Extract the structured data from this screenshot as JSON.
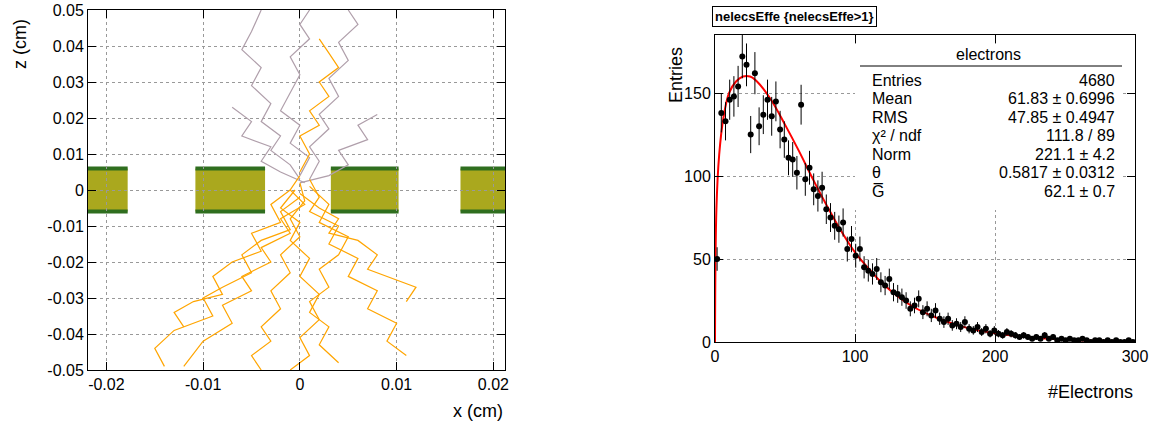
{
  "chart_data": [
    {
      "type": "line",
      "xlabel": "x (cm)",
      "ylabel": "z (cm)",
      "xlim": [
        -0.0219,
        0.0212
      ],
      "ylim": [
        -0.05,
        0.05
      ],
      "xticks": [
        -0.02,
        -0.01,
        0,
        0.01,
        0.02
      ],
      "yticks": [
        -0.05,
        -0.04,
        -0.03,
        -0.02,
        -0.01,
        0,
        0.01,
        0.02,
        0.03,
        0.04,
        0.05
      ],
      "grid": true,
      "foil": {
        "z": [
          -0.006,
          0.006
        ],
        "color": "#aaa81e",
        "edge_color": "#2f6e1f",
        "segments": [
          [
            -0.0219,
            -0.0178
          ],
          [
            -0.0108,
            -0.0036
          ],
          [
            0.0032,
            0.0102
          ],
          [
            0.0166,
            0.0212
          ]
        ]
      },
      "series": [
        {
          "color": "#b09fab",
          "x": [
            0,
            -0.001,
            -0.003,
            -0.002,
            -0.004,
            -0.003,
            -0.005,
            -0.004,
            -0.006,
            -0.005,
            -0.004
          ],
          "y": [
            0.003,
            0.007,
            0.011,
            0.015,
            0.019,
            0.024,
            0.029,
            0.034,
            0.039,
            0.044,
            0.05
          ]
        },
        {
          "color": "#b09fab",
          "x": [
            0.001,
            0.002,
            0.001,
            0.003,
            0.002,
            0.004,
            0.003,
            0.005,
            0.004,
            0.006,
            0.005
          ],
          "y": [
            0.003,
            0.008,
            0.012,
            0.017,
            0.021,
            0.026,
            0.031,
            0.036,
            0.041,
            0.046,
            0.05
          ]
        },
        {
          "color": "#b09fab",
          "x": [
            0,
            0.001,
            -0.001,
            0,
            -0.002,
            -0.001,
            0,
            -0.001,
            0.001,
            0,
            0.001
          ],
          "y": [
            0.004,
            0.009,
            0.013,
            0.018,
            0.022,
            0.027,
            0.032,
            0.037,
            0.042,
            0.046,
            0.05
          ]
        },
        {
          "color": "#b09fab",
          "x": [
            0.0005,
            -0.002,
            -0.004,
            -0.003,
            -0.006,
            -0.005,
            -0.007
          ],
          "y": [
            0.002,
            0.005,
            0.008,
            0.012,
            0.015,
            0.019,
            0.023
          ]
        },
        {
          "color": "#b09fab",
          "x": [
            0,
            0.003,
            0.005,
            0.004,
            0.007,
            0.006,
            0.008
          ],
          "y": [
            0.002,
            0.004,
            0.007,
            0.011,
            0.014,
            0.018,
            0.021
          ]
        },
        {
          "color": "#ffa500",
          "x": [
            0,
            -0.001,
            0.0005,
            -0.002,
            -0.001,
            -0.004,
            -0.003,
            -0.006,
            -0.005,
            -0.008,
            -0.007,
            -0.01,
            -0.012
          ],
          "y": [
            0.004,
            0,
            -0.004,
            -0.008,
            -0.012,
            -0.016,
            -0.02,
            -0.024,
            -0.028,
            -0.032,
            -0.037,
            -0.042,
            -0.049
          ]
        },
        {
          "color": "#ffa500",
          "x": [
            0.001,
            0.002,
            0.001,
            0.004,
            0.003,
            0.006,
            0.005,
            0.008,
            0.007,
            0.01,
            0.009,
            0.011
          ],
          "y": [
            0.003,
            -0.002,
            -0.006,
            -0.01,
            -0.015,
            -0.019,
            -0.024,
            -0.028,
            -0.033,
            -0.037,
            -0.042,
            -0.046
          ]
        },
        {
          "color": "#ffa500",
          "x": [
            0,
            0.0005,
            -0.001,
            0,
            -0.002,
            -0.001,
            -0.003,
            -0.002,
            -0.004,
            -0.003,
            -0.005,
            -0.004
          ],
          "y": [
            0.002,
            -0.003,
            -0.008,
            -0.013,
            -0.018,
            -0.023,
            -0.028,
            -0.033,
            -0.038,
            -0.042,
            -0.046,
            -0.05
          ]
        },
        {
          "color": "#ffa500",
          "x": [
            -0.001,
            -0.003,
            -0.002,
            -0.005,
            -0.004,
            -0.007,
            -0.009,
            -0.008,
            -0.011,
            -0.013,
            -0.012
          ],
          "y": [
            0,
            -0.004,
            -0.009,
            -0.012,
            -0.017,
            -0.02,
            -0.024,
            -0.029,
            -0.031,
            -0.034,
            -0.038
          ]
        },
        {
          "color": "#ffa500",
          "x": [
            0.001,
            0.003,
            0.002,
            0.005,
            0.004,
            0.002,
            0.003,
            0.001,
            0.002,
            0,
            0.001,
            -0.001
          ],
          "y": [
            0.001,
            -0.004,
            -0.009,
            -0.013,
            -0.018,
            -0.022,
            -0.027,
            -0.031,
            -0.036,
            -0.041,
            -0.046,
            -0.05
          ]
        },
        {
          "color": "#ffa500",
          "x": [
            0,
            0.002,
            0.004,
            0.003,
            0.006,
            0.008,
            0.007,
            0.01,
            0.012,
            0.011
          ],
          "y": [
            -0.001,
            -0.005,
            -0.008,
            -0.012,
            -0.014,
            -0.018,
            -0.022,
            -0.025,
            -0.027,
            -0.031
          ]
        },
        {
          "color": "#ffa500",
          "x": [
            -0.0005,
            -0.002,
            0,
            -0.001,
            0.001,
            0,
            0.002,
            0.001,
            0.003,
            0.002,
            0.004
          ],
          "y": [
            0,
            -0.005,
            -0.009,
            -0.014,
            -0.019,
            -0.024,
            -0.029,
            -0.034,
            -0.038,
            -0.043,
            -0.048
          ]
        },
        {
          "color": "#ffa500",
          "x": [
            0,
            -0.002,
            -0.001,
            -0.004,
            -0.006,
            -0.005,
            -0.008,
            -0.01,
            -0.009,
            -0.013,
            -0.015,
            -0.014
          ],
          "y": [
            -0.002,
            -0.006,
            -0.011,
            -0.014,
            -0.018,
            -0.023,
            -0.027,
            -0.03,
            -0.035,
            -0.039,
            -0.044,
            -0.049
          ]
        },
        {
          "color": "#ffa500",
          "x": [
            0,
            0.001,
            0,
            0.002,
            0.001,
            0.003,
            0.002,
            0.004,
            0.003,
            0.002
          ],
          "y": [
            0.005,
            0.01,
            0.015,
            0.018,
            0.022,
            0.026,
            0.03,
            0.034,
            0.038,
            0.042
          ]
        }
      ]
    },
    {
      "type": "histogram",
      "title": "nelecsEffe {nelecsEffe>1}",
      "xlabel": "#Electrons",
      "ylabel": "Entries",
      "xlim": [
        0,
        300
      ],
      "ylim": [
        0,
        185
      ],
      "xticks": [
        0,
        100,
        200,
        300
      ],
      "yticks": [
        0,
        50,
        100,
        150
      ],
      "grid": true,
      "marker": "circle",
      "color": "#000000",
      "bins": [
        0,
        3,
        6,
        9,
        12,
        15,
        18,
        21,
        24,
        27,
        30,
        33,
        36,
        39,
        42,
        45,
        48,
        51,
        54,
        57,
        60,
        63,
        66,
        69,
        72,
        75,
        78,
        81,
        84,
        87,
        90,
        93,
        96,
        99,
        102,
        105,
        108,
        111,
        114,
        117,
        120,
        123,
        126,
        129,
        132,
        135,
        138,
        141,
        144,
        147,
        150,
        153,
        156,
        159,
        162,
        165,
        168,
        171,
        174,
        177,
        180,
        183,
        186,
        189,
        192,
        195,
        198,
        201,
        204,
        207,
        210,
        213,
        216,
        219,
        222,
        225,
        228,
        231,
        234,
        237,
        240,
        243,
        246,
        249,
        252,
        255,
        258,
        261,
        264,
        267,
        270,
        273,
        276,
        279,
        282,
        285,
        288,
        291,
        294,
        297,
        300
      ],
      "values": [
        50,
        138,
        133,
        146,
        148,
        154,
        172,
        167,
        125,
        162,
        130,
        137,
        146,
        136,
        145,
        128,
        122,
        111,
        110,
        102,
        143,
        98,
        105,
        92,
        88,
        93,
        80,
        75,
        70,
        68,
        72,
        56,
        62,
        52,
        56,
        45,
        43,
        41,
        44,
        36,
        34,
        38,
        30,
        29,
        27,
        25,
        20,
        22,
        26,
        18,
        20,
        16,
        19,
        14,
        12,
        14,
        10,
        11,
        9,
        12,
        8,
        7,
        9,
        6,
        8,
        5,
        7,
        5,
        4,
        6,
        5,
        4,
        3,
        4,
        3,
        2,
        3,
        2,
        4,
        2,
        3,
        1,
        2,
        1,
        2,
        1,
        1,
        2,
        1,
        0,
        1,
        1,
        0,
        1,
        0,
        1,
        0,
        0,
        1,
        0
      ],
      "errors": [
        7.1,
        11.7,
        11.5,
        12.1,
        12.2,
        12.4,
        13.1,
        12.9,
        11.2,
        12.7,
        11.4,
        11.7,
        12.1,
        11.7,
        12.0,
        11.3,
        11.0,
        10.5,
        10.5,
        10.1,
        12.0,
        9.9,
        10.2,
        9.6,
        9.4,
        9.6,
        8.9,
        8.7,
        8.4,
        8.2,
        8.5,
        7.5,
        7.9,
        7.2,
        7.5,
        6.7,
        6.6,
        6.4,
        6.6,
        6.0,
        5.8,
        6.2,
        5.5,
        5.4,
        5.2,
        5.0,
        4.5,
        4.7,
        5.1,
        4.2,
        4.5,
        4.0,
        4.4,
        3.7,
        3.5,
        3.7,
        3.2,
        3.3,
        3.0,
        3.5,
        2.8,
        2.6,
        3.0,
        2.4,
        2.8,
        2.2,
        2.6,
        2.2,
        2.0,
        2.4,
        2.2,
        2.0,
        1.7,
        2.0,
        1.7,
        1.4,
        1.7,
        1.4,
        2.0,
        1.4,
        1.7,
        1.0,
        1.4,
        1.0,
        1.4,
        1.0,
        1.0,
        1.4,
        1.0,
        0,
        1.0,
        1.0,
        0,
        1.0,
        0,
        1.0,
        0,
        0,
        1.0,
        0
      ],
      "fit": {
        "color": "#ff0000",
        "x": [
          0,
          1,
          3,
          6,
          10,
          15,
          20,
          25,
          30,
          40,
          50,
          60,
          70,
          80,
          90,
          100,
          110,
          120,
          140,
          160,
          180,
          200,
          220,
          240,
          260,
          280,
          300
        ],
        "y": [
          0,
          80,
          113,
          135,
          150,
          157,
          160,
          160,
          157,
          146,
          131,
          115,
          98,
          82,
          67,
          54,
          44,
          35,
          22,
          14,
          8.5,
          5.2,
          3.1,
          1.9,
          1.1,
          0.7,
          0.4
        ]
      },
      "stats": {
        "title": "electrons",
        "rows": [
          [
            "Entries",
            "4680"
          ],
          [
            "Mean",
            "61.83 ± 0.6996"
          ],
          [
            "RMS",
            "47.85 ± 0.4947"
          ],
          [
            "χ² / ndf",
            "111.8 / 89"
          ],
          [
            "Norm",
            "221.1 ± 4.2"
          ],
          [
            "θ",
            "0.5817 ± 0.0312"
          ],
          [
            "G̅",
            "62.1 ± 0.7"
          ]
        ]
      }
    }
  ]
}
